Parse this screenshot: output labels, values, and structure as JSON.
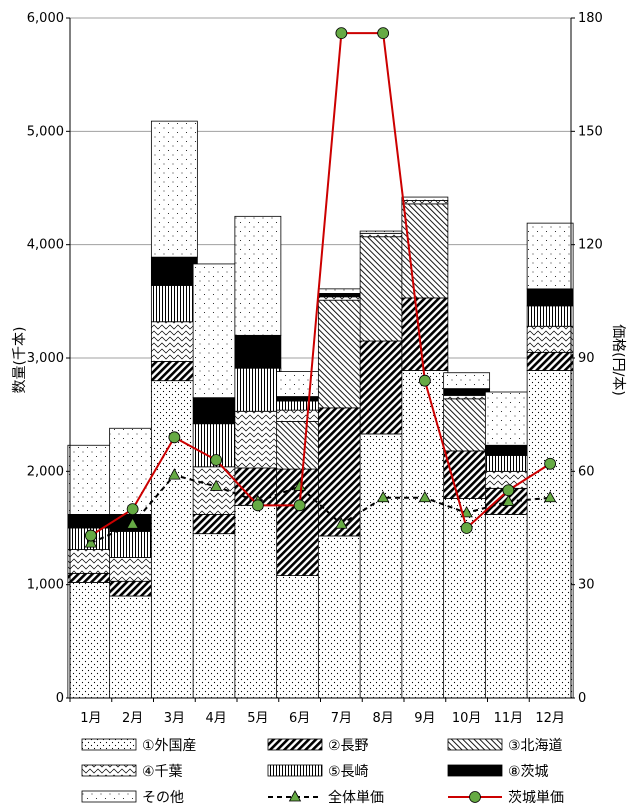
{
  "chart_data": {
    "type": "bar",
    "stacked": true,
    "ylabel_left": "数量(千本)",
    "ylabel_right": "価格(円/本)",
    "ylim_left": [
      0,
      6000
    ],
    "ylim_right": [
      0,
      180
    ],
    "yticks_left": [
      "0",
      "1,000",
      "2,000",
      "3,000",
      "4,000",
      "5,000",
      "6,000"
    ],
    "yticks_right": [
      "0",
      "30",
      "60",
      "90",
      "120",
      "150",
      "180"
    ],
    "grid": true,
    "categories": [
      "1月",
      "2月",
      "3月",
      "4月",
      "5月",
      "6月",
      "7月",
      "8月",
      "9月",
      "10月",
      "11月",
      "12月"
    ],
    "series": [
      {
        "name": "①外国産",
        "values": [
          1020,
          900,
          2800,
          1450,
          1700,
          1080,
          1430,
          2330,
          2890,
          1760,
          1620,
          2890
        ]
      },
      {
        "name": "②長野",
        "values": [
          80,
          130,
          170,
          170,
          330,
          940,
          1130,
          820,
          640,
          420,
          230,
          160
        ]
      },
      {
        "name": "③北海道",
        "values": [
          0,
          0,
          0,
          0,
          0,
          420,
          950,
          920,
          830,
          460,
          0,
          0
        ]
      },
      {
        "name": "④千葉",
        "values": [
          210,
          210,
          350,
          420,
          500,
          100,
          30,
          30,
          30,
          30,
          150,
          230
        ]
      },
      {
        "name": "⑤長崎",
        "values": [
          190,
          230,
          320,
          380,
          380,
          80,
          0,
          0,
          0,
          0,
          140,
          180
        ]
      },
      {
        "name": "⑧茨城",
        "values": [
          120,
          150,
          250,
          230,
          290,
          40,
          30,
          0,
          0,
          60,
          90,
          150
        ]
      },
      {
        "name": "その他",
        "values": [
          610,
          760,
          1200,
          1180,
          1050,
          220,
          40,
          20,
          30,
          140,
          470,
          580
        ]
      }
    ],
    "lines": [
      {
        "name": "全体単価",
        "axis": "right",
        "style": "dashed",
        "marker": "triangle",
        "color": "#000000",
        "values": [
          41,
          46,
          59,
          56,
          52,
          56,
          46,
          53,
          53,
          49,
          52,
          53
        ]
      },
      {
        "name": "茨城単価",
        "axis": "right",
        "style": "solid",
        "marker": "circle",
        "color": "#cc0000",
        "values": [
          43,
          50,
          69,
          63,
          51,
          51,
          176,
          176,
          84,
          45,
          55,
          62
        ]
      }
    ],
    "legend_position": "bottom"
  }
}
